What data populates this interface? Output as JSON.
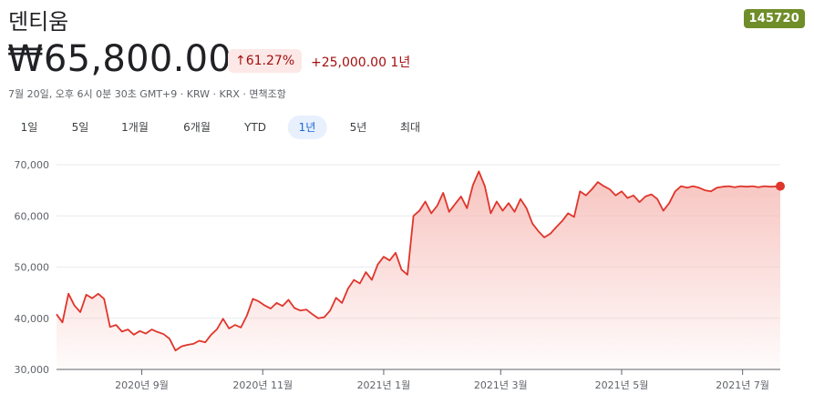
{
  "header": {
    "title": "덴티움",
    "ticker": "145720",
    "price": "₩65,800.00",
    "change_pct": "61.27%",
    "change_abs": "+25,000.00 1년",
    "meta": "7월 20일, 오후 6시 0분 30초 GMT+9 · KRW · KRX · 면책조항"
  },
  "tabs": [
    {
      "label": "1일",
      "active": false
    },
    {
      "label": "5일",
      "active": false
    },
    {
      "label": "1개월",
      "active": false
    },
    {
      "label": "6개월",
      "active": false
    },
    {
      "label": "YTD",
      "active": false
    },
    {
      "label": "1년",
      "active": true
    },
    {
      "label": "5년",
      "active": false
    },
    {
      "label": "최대",
      "active": false
    }
  ],
  "colors": {
    "line": "#e0352b",
    "fill": "#f6bdb8",
    "badge_bg": "#fce8e6",
    "badge_fg": "#a50e0e",
    "ticker_bg": "#6f8d29"
  },
  "icons": {
    "change_arrow": "arrow-up-icon"
  },
  "chart_data": {
    "type": "area",
    "title": "",
    "xlabel": "",
    "ylabel": "",
    "ylim": [
      30000,
      70000
    ],
    "yticks": [
      30000,
      40000,
      50000,
      60000,
      70000
    ],
    "ytick_labels": [
      "30,000",
      "40,000",
      "50,000",
      "60,000",
      "70,000"
    ],
    "xlim": [
      "2020-07-20",
      "2021-07-20"
    ],
    "xticks": [
      {
        "date": "2020-09-01",
        "label": "2020년 9월"
      },
      {
        "date": "2020-11-01",
        "label": "2020년 11월"
      },
      {
        "date": "2021-01-01",
        "label": "2021년 1월"
      },
      {
        "date": "2021-03-01",
        "label": "2021년 3월"
      },
      {
        "date": "2021-05-01",
        "label": "2021년 5월"
      },
      {
        "date": "2021-07-01",
        "label": "2021년 7월"
      }
    ],
    "grid": true,
    "series": [
      {
        "x": [
          "2020-07-20",
          "2020-07-23",
          "2020-07-26",
          "2020-07-29",
          "2020-08-01",
          "2020-08-04",
          "2020-08-07",
          "2020-08-10",
          "2020-08-13",
          "2020-08-16",
          "2020-08-19",
          "2020-08-22",
          "2020-08-25",
          "2020-08-28",
          "2020-08-31",
          "2020-09-03",
          "2020-09-06",
          "2020-09-09",
          "2020-09-12",
          "2020-09-15",
          "2020-09-18",
          "2020-09-21",
          "2020-09-24",
          "2020-09-27",
          "2020-09-30",
          "2020-10-03",
          "2020-10-06",
          "2020-10-09",
          "2020-10-12",
          "2020-10-15",
          "2020-10-18",
          "2020-10-21",
          "2020-10-24",
          "2020-10-27",
          "2020-10-30",
          "2020-11-02",
          "2020-11-05",
          "2020-11-08",
          "2020-11-11",
          "2020-11-14",
          "2020-11-17",
          "2020-11-20",
          "2020-11-23",
          "2020-11-26",
          "2020-11-29",
          "2020-12-02",
          "2020-12-05",
          "2020-12-08",
          "2020-12-11",
          "2020-12-14",
          "2020-12-17",
          "2020-12-20",
          "2020-12-23",
          "2020-12-26",
          "2020-12-29",
          "2021-01-01",
          "2021-01-04",
          "2021-01-07",
          "2021-01-10",
          "2021-01-13",
          "2021-01-16",
          "2021-01-19",
          "2021-01-22",
          "2021-01-25",
          "2021-01-28",
          "2021-01-31",
          "2021-02-03",
          "2021-02-06",
          "2021-02-09",
          "2021-02-12",
          "2021-02-15",
          "2021-02-18",
          "2021-02-21",
          "2021-02-24",
          "2021-02-27",
          "2021-03-02",
          "2021-03-05",
          "2021-03-08",
          "2021-03-11",
          "2021-03-14",
          "2021-03-17",
          "2021-03-20",
          "2021-03-23",
          "2021-03-26",
          "2021-03-29",
          "2021-04-01",
          "2021-04-04",
          "2021-04-07",
          "2021-04-10",
          "2021-04-13",
          "2021-04-16",
          "2021-04-19",
          "2021-04-22",
          "2021-04-25",
          "2021-04-28",
          "2021-05-01",
          "2021-05-04",
          "2021-05-07",
          "2021-05-10",
          "2021-05-13",
          "2021-05-16",
          "2021-05-19",
          "2021-05-22",
          "2021-05-25",
          "2021-05-28",
          "2021-05-31",
          "2021-06-03",
          "2021-06-06",
          "2021-06-09",
          "2021-06-12",
          "2021-06-15",
          "2021-06-18",
          "2021-06-21",
          "2021-06-24",
          "2021-06-27",
          "2021-06-30",
          "2021-07-03",
          "2021-07-06",
          "2021-07-09",
          "2021-07-12",
          "2021-07-15",
          "2021-07-20"
        ],
        "y": [
          40800,
          39200,
          44800,
          42500,
          41200,
          44600,
          43900,
          44800,
          43800,
          38300,
          38700,
          37400,
          37800,
          36800,
          37500,
          37000,
          37800,
          37300,
          36900,
          36000,
          33700,
          34500,
          34800,
          35000,
          35600,
          35300,
          36800,
          37900,
          39900,
          38000,
          38700,
          38200,
          40500,
          43800,
          43300,
          42500,
          41900,
          43000,
          42400,
          43600,
          42000,
          41500,
          41700,
          40800,
          40000,
          40200,
          41500,
          44000,
          43000,
          45800,
          47500,
          46800,
          49000,
          47500,
          50500,
          52000,
          51300,
          52800,
          49500,
          48500,
          60000,
          61000,
          62800,
          60500,
          62000,
          64500,
          60800,
          62300,
          63800,
          61500,
          66000,
          68700,
          65800,
          60500,
          62800,
          61000,
          62500,
          60800,
          63300,
          61500,
          58500,
          57000,
          55800,
          56500,
          57800,
          59000,
          60500,
          59800,
          64800,
          64000,
          65200,
          66600,
          65800,
          65200,
          64000,
          64800,
          63500,
          64000,
          62700,
          63800,
          64200,
          63300,
          61000,
          62500,
          64800,
          65800,
          65500,
          65800,
          65500,
          65000,
          64800,
          65500,
          65700,
          65800,
          65600,
          65800,
          65700,
          65800,
          65600,
          65800,
          65700,
          65800
        ]
      }
    ]
  }
}
